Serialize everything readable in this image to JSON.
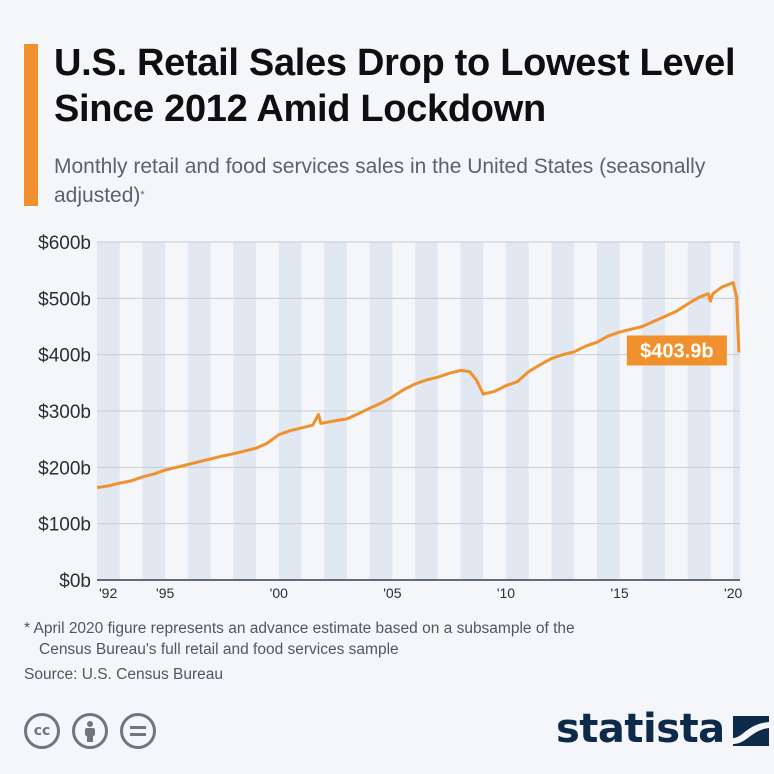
{
  "header": {
    "title": "U.S. Retail Sales Drop to Lowest Level Since 2012 Amid Lockdown",
    "subtitle": "Monthly retail and food services sales in the United States (seasonally adjusted)",
    "subtitle_mark": "*"
  },
  "chart_data": {
    "type": "line",
    "title": "U.S. Retail Sales Drop to Lowest Level Since 2012 Amid Lockdown",
    "subtitle": "Monthly retail and food services sales in the United States (seasonally adjusted)*",
    "y_unit": "billion USD",
    "ylim": [
      0,
      600
    ],
    "y_ticks": [
      0,
      100,
      200,
      300,
      400,
      500,
      600
    ],
    "y_tick_labels": [
      "$0b",
      "$100b",
      "$200b",
      "$300b",
      "$400b",
      "$500b",
      "$600b"
    ],
    "x_ticks": [
      1992,
      1995,
      2000,
      2005,
      2010,
      2015,
      2020
    ],
    "x_tick_labels": [
      "'92",
      "'95",
      "'00",
      "'05",
      "'10",
      "'15",
      "'20"
    ],
    "xlim": [
      1992.0,
      2020.3
    ],
    "grid": true,
    "background": "alternating vertical year bands",
    "series": [
      {
        "color": "#f0912d",
        "points": [
          [
            1992.0,
            164
          ],
          [
            1992.5,
            167
          ],
          [
            1993.0,
            172
          ],
          [
            1993.5,
            176
          ],
          [
            1994.0,
            183
          ],
          [
            1994.5,
            188
          ],
          [
            1995.0,
            195
          ],
          [
            1995.5,
            200
          ],
          [
            1996.0,
            205
          ],
          [
            1996.5,
            210
          ],
          [
            1997.0,
            215
          ],
          [
            1997.5,
            220
          ],
          [
            1998.0,
            224
          ],
          [
            1998.5,
            229
          ],
          [
            1999.0,
            234
          ],
          [
            1999.5,
            243
          ],
          [
            2000.0,
            258
          ],
          [
            2000.5,
            265
          ],
          [
            2001.0,
            270
          ],
          [
            2001.5,
            275
          ],
          [
            2001.75,
            294
          ],
          [
            2001.85,
            278
          ],
          [
            2002.0,
            279
          ],
          [
            2002.5,
            283
          ],
          [
            2003.0,
            286
          ],
          [
            2003.5,
            295
          ],
          [
            2004.0,
            305
          ],
          [
            2004.5,
            314
          ],
          [
            2005.0,
            325
          ],
          [
            2005.5,
            338
          ],
          [
            2006.0,
            348
          ],
          [
            2006.5,
            355
          ],
          [
            2007.0,
            360
          ],
          [
            2007.5,
            367
          ],
          [
            2008.0,
            372
          ],
          [
            2008.4,
            370
          ],
          [
            2008.7,
            355
          ],
          [
            2009.0,
            330
          ],
          [
            2009.5,
            335
          ],
          [
            2010.0,
            345
          ],
          [
            2010.5,
            352
          ],
          [
            2011.0,
            370
          ],
          [
            2011.5,
            382
          ],
          [
            2012.0,
            393
          ],
          [
            2012.5,
            400
          ],
          [
            2013.0,
            405
          ],
          [
            2013.5,
            415
          ],
          [
            2014.0,
            422
          ],
          [
            2014.5,
            433
          ],
          [
            2015.0,
            440
          ],
          [
            2015.5,
            445
          ],
          [
            2016.0,
            450
          ],
          [
            2016.5,
            459
          ],
          [
            2017.0,
            468
          ],
          [
            2017.5,
            477
          ],
          [
            2018.0,
            490
          ],
          [
            2018.5,
            502
          ],
          [
            2018.9,
            508
          ],
          [
            2019.0,
            495
          ],
          [
            2019.1,
            508
          ],
          [
            2019.5,
            520
          ],
          [
            2020.0,
            528
          ],
          [
            2020.15,
            502
          ],
          [
            2020.25,
            403.9
          ]
        ]
      }
    ],
    "annotations": [
      {
        "label": "$403.9b",
        "x": 2020.25,
        "y": 403.9,
        "color": "#f0912d"
      }
    ]
  },
  "footer": {
    "footnote_mark": "*",
    "footnote_line1": "April 2020 figure represents an advance estimate based on a subsample of the",
    "footnote_line2": "Census Bureau's full retail and food services sample",
    "source": "Source: U.S. Census Bureau",
    "license_icons": [
      "creative-commons-icon",
      "attribution-person-icon",
      "no-derivatives-icon"
    ],
    "brand": "statista"
  },
  "colors": {
    "accent": "#f0912d",
    "brand": "#0e2a4a",
    "background": "#f4f6f9",
    "band": "#e2e8f1"
  }
}
